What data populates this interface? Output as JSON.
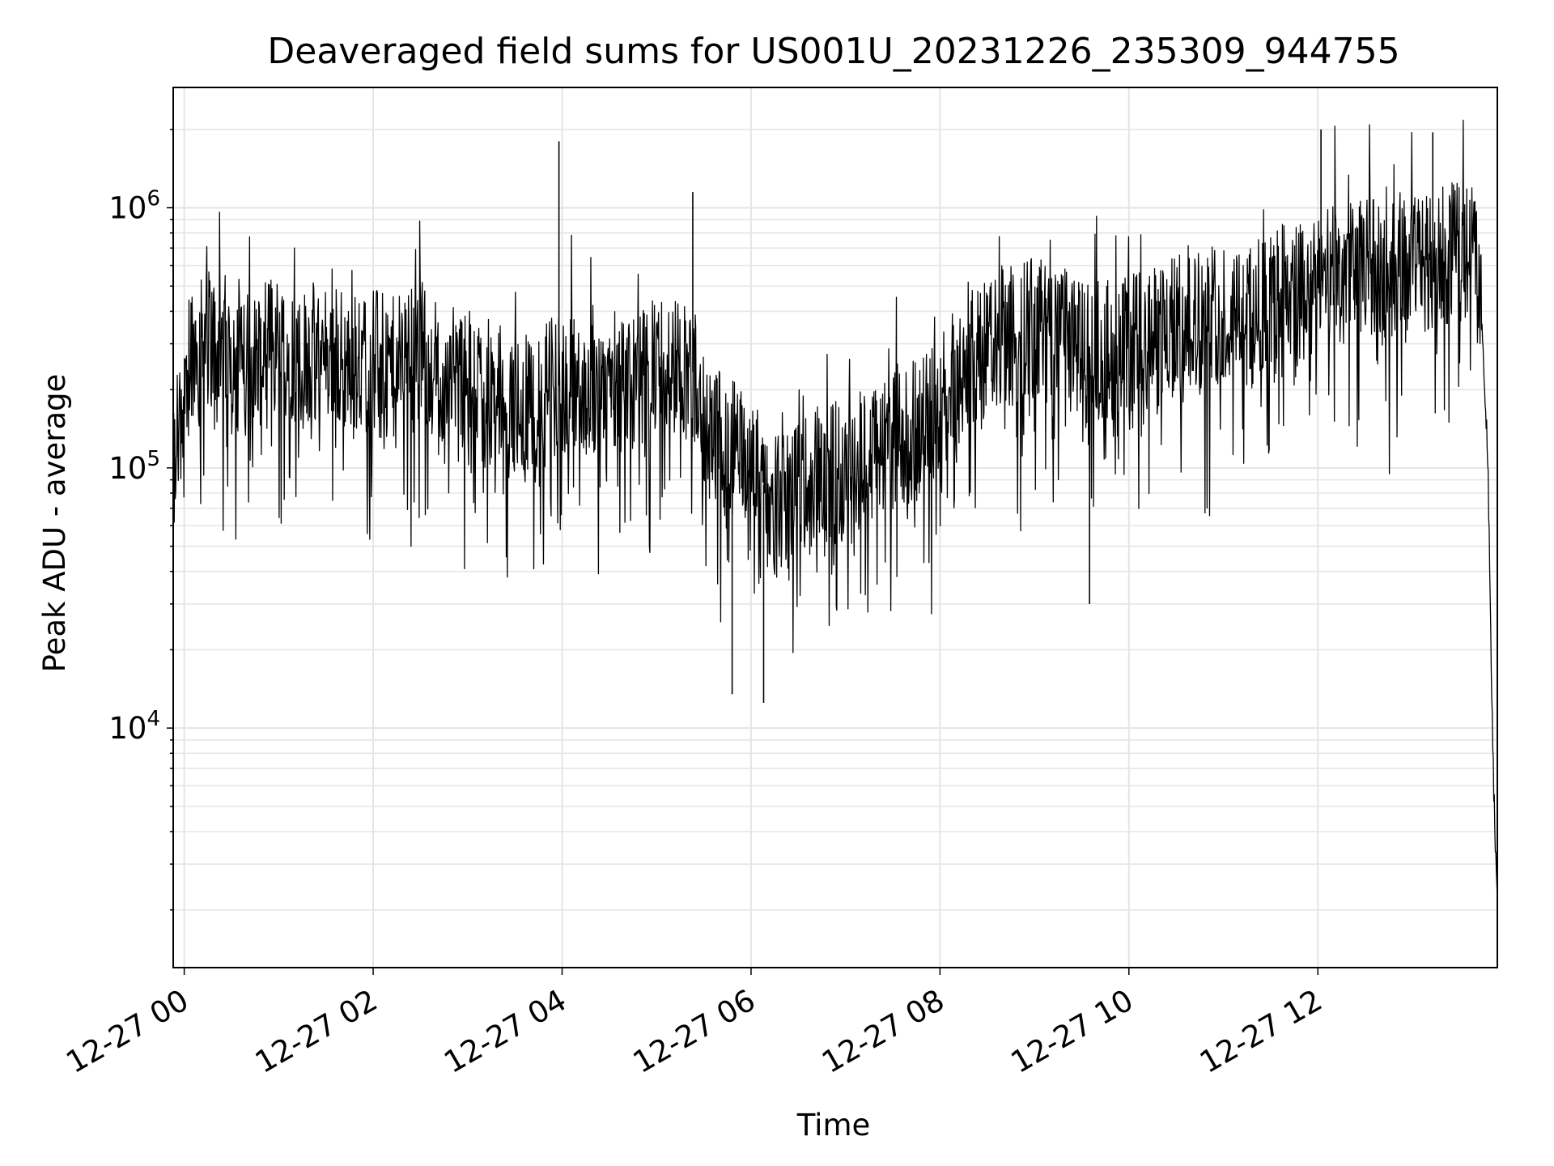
{
  "chart_data": {
    "type": "line",
    "title": "Deaveraged field sums for US001U_20231226_235309_944755",
    "xlabel": "Time",
    "ylabel": "Peak ADU - average",
    "yscale": "log",
    "grid": true,
    "line_color": "#000000",
    "grid_color": "#e5e5e5",
    "x_ticks": [
      "12-27 00",
      "12-27 02",
      "12-27 04",
      "12-27 06",
      "12-27 08",
      "12-27 10",
      "12-27 12"
    ],
    "y_ticks": [
      {
        "value": 10000,
        "base": "10",
        "exp": "4"
      },
      {
        "value": 100000,
        "base": "10",
        "exp": "5"
      },
      {
        "value": 1000000,
        "base": "10",
        "exp": "6"
      }
    ],
    "xlim": [
      "12-26 23:53",
      "12-27 13:54"
    ],
    "ylim": [
      1200,
      2900000
    ],
    "series": [
      {
        "x": [
          "12-26 23:53",
          "12-26 23:55",
          "12-26 23:58",
          "12-27 00:00",
          "12-27 00:05",
          "12-27 00:10",
          "12-27 00:15",
          "12-27 00:30",
          "12-27 00:45",
          "12-27 01:00",
          "12-27 01:15",
          "12-27 01:30",
          "12-27 01:45",
          "12-27 02:00",
          "12-27 02:15",
          "12-27 02:30",
          "12-27 02:45",
          "12-27 03:00",
          "12-27 03:15",
          "12-27 03:30",
          "12-27 03:45",
          "12-27 04:00",
          "12-27 04:15",
          "12-27 04:30",
          "12-27 04:45",
          "12-27 05:00",
          "12-27 05:15",
          "12-27 05:25",
          "12-27 05:30",
          "12-27 05:45",
          "12-27 06:00",
          "12-27 06:15",
          "12-27 06:30",
          "12-27 06:45",
          "12-27 07:00",
          "12-27 07:15",
          "12-27 07:30",
          "12-27 07:45",
          "12-27 08:00",
          "12-27 08:15",
          "12-27 08:30",
          "12-27 08:45",
          "12-27 09:00",
          "12-27 09:15",
          "12-27 09:30",
          "12-27 09:45",
          "12-27 10:00",
          "12-27 10:15",
          "12-27 10:30",
          "12-27 10:45",
          "12-27 11:00",
          "12-27 11:15",
          "12-27 11:30",
          "12-27 11:45",
          "12-27 12:00",
          "12-27 12:15",
          "12-27 12:30",
          "12-27 12:45",
          "12-27 13:00",
          "12-27 13:15",
          "12-27 13:30",
          "12-27 13:40",
          "12-27 13:45",
          "12-27 13:48",
          "12-27 13:50",
          "12-27 13:52",
          "12-27 13:54"
        ],
        "y": [
          80000,
          130000,
          150000,
          250000,
          300000,
          280000,
          320000,
          290000,
          260000,
          300000,
          270000,
          280000,
          250000,
          260000,
          240000,
          280000,
          230000,
          220000,
          200000,
          170000,
          190000,
          210000,
          200000,
          230000,
          220000,
          240000,
          250000,
          230000,
          150000,
          120000,
          110000,
          70000,
          80000,
          90000,
          100000,
          110000,
          130000,
          140000,
          170000,
          250000,
          300000,
          330000,
          350000,
          320000,
          300000,
          280000,
          300000,
          310000,
          350000,
          380000,
          400000,
          420000,
          450000,
          480000,
          520000,
          550000,
          580000,
          600000,
          620000,
          650000,
          680000,
          700000,
          300000,
          100000,
          20000,
          5000,
          2000
        ]
      }
    ],
    "spikes": [
      {
        "x": "12-27 03:58",
        "y": 1800000
      },
      {
        "x": "12-27 05:23",
        "y": 1150000
      },
      {
        "x": "12-27 06:08",
        "y": 12500
      },
      {
        "x": "12-27 05:48",
        "y": 13500
      },
      {
        "x": "12-27 12:02",
        "y": 2000000
      },
      {
        "x": "12-27 13:13",
        "y": 1950000
      },
      {
        "x": "12-27 09:35",
        "y": 30000
      }
    ]
  }
}
